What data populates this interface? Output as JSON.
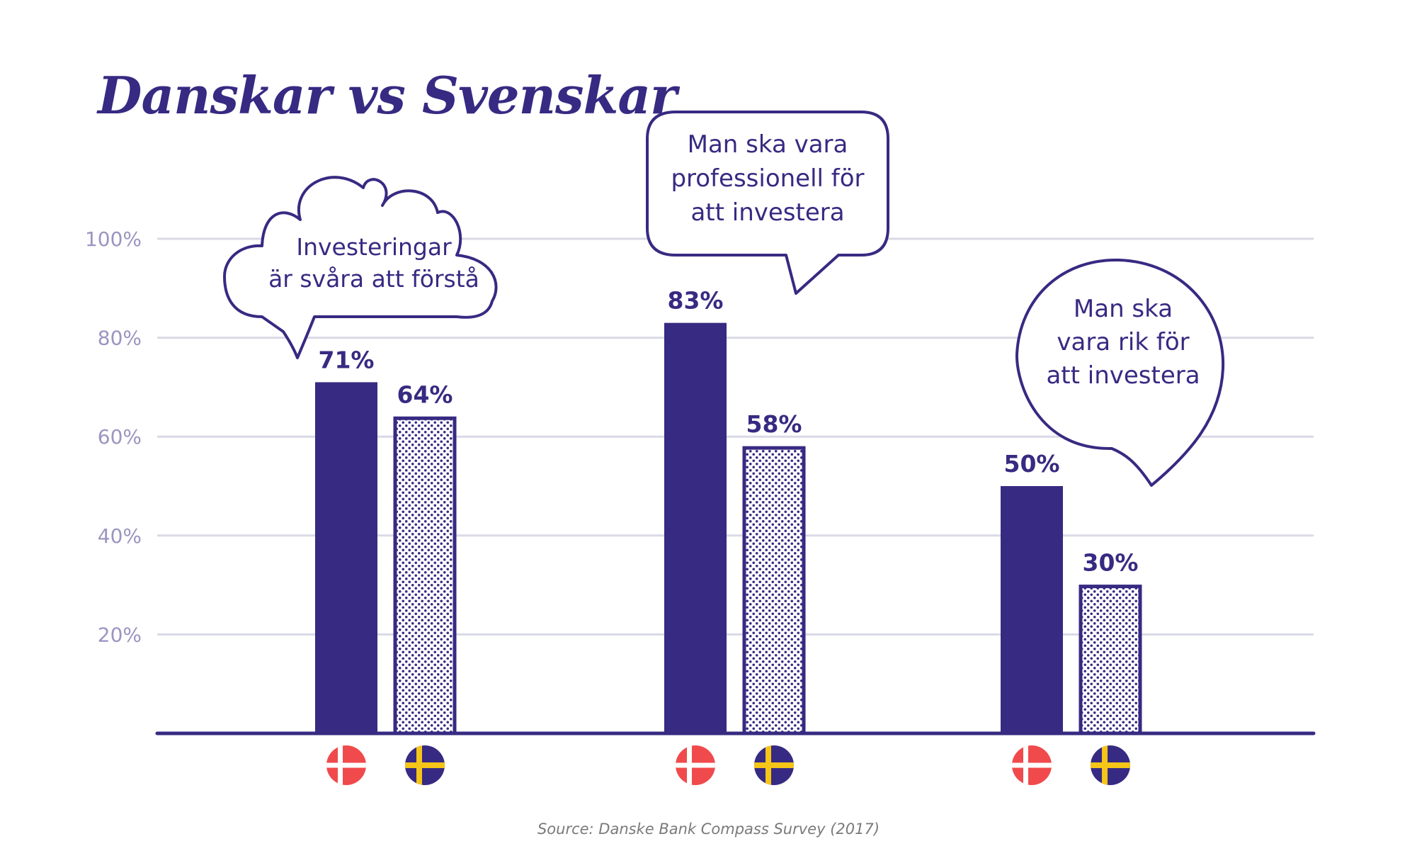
{
  "colors": {
    "primary": "#372A82",
    "grid": "#D9D9E6",
    "tick": "#9A95C0",
    "denmark_red": "#F04A4C",
    "sweden_blue": "#372A82",
    "sweden_yellow": "#F5C518"
  },
  "chart_data": {
    "type": "bar",
    "title": "Danskar vs Svenskar",
    "source": "Source: Danske Bank Compass Survey (2017)",
    "y_ticks": [
      "20%",
      "40%",
      "60%",
      "80%",
      "100%"
    ],
    "ylim": [
      0,
      100
    ],
    "grid": true,
    "series": [
      {
        "icon": "denmark-flag-icon",
        "pattern": "solid"
      },
      {
        "icon": "sweden-flag-icon",
        "pattern": "dotted"
      }
    ],
    "groups": [
      {
        "label": [
          "Investeringar",
          "är svåra att förstå"
        ],
        "bubble_style": "cloud",
        "values": [
          71,
          64
        ],
        "value_labels": [
          "71%",
          "64%"
        ]
      },
      {
        "label": [
          "Man ska vara",
          "professionell för",
          "att investera"
        ],
        "bubble_style": "rounded-rectangle",
        "values": [
          83,
          58
        ],
        "value_labels": [
          "83%",
          "58%"
        ]
      },
      {
        "label": [
          "Man ska",
          "vara rik för",
          "att investera"
        ],
        "bubble_style": "circle",
        "values": [
          50,
          30
        ],
        "value_labels": [
          "50%",
          "30%"
        ]
      }
    ]
  }
}
